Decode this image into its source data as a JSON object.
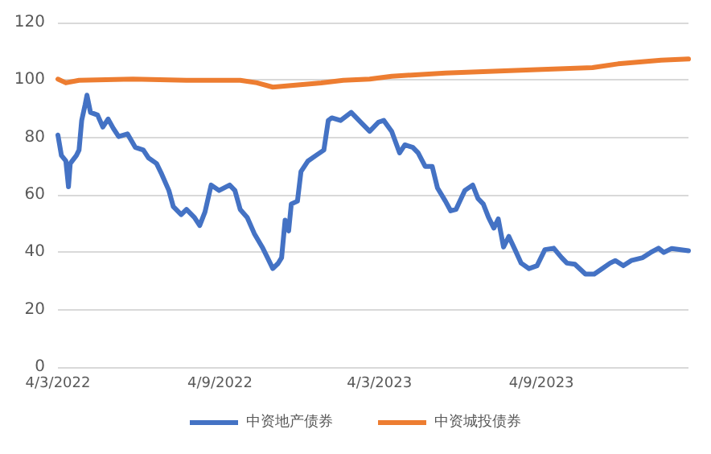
{
  "chart_data": {
    "type": "line",
    "xlim": [
      "2022-03-04",
      "2024-02-18"
    ],
    "xticks": [
      {
        "value": "2022-03-04",
        "label": "4/3/2022"
      },
      {
        "value": "2022-09-04",
        "label": "4/9/2022"
      },
      {
        "value": "2023-03-04",
        "label": "4/3/2023"
      },
      {
        "value": "2023-09-04",
        "label": "4/9/2023"
      }
    ],
    "ylim": [
      0,
      120
    ],
    "yticks": [
      0,
      20,
      40,
      60,
      80,
      100,
      120
    ],
    "grid": "y",
    "legend": "bottom",
    "marker": "none",
    "line_style": "solid",
    "series": [
      {
        "name": "中资地产债券",
        "color": "#4472c4",
        "x": [
          "2022-03-04",
          "2022-03-08",
          "2022-03-13",
          "2022-03-16",
          "2022-03-18",
          "2022-03-25",
          "2022-03-28",
          "2022-03-31",
          "2022-04-04",
          "2022-04-06",
          "2022-04-10",
          "2022-04-18",
          "2022-04-24",
          "2022-04-30",
          "2022-05-06",
          "2022-05-12",
          "2022-05-22",
          "2022-05-31",
          "2022-06-09",
          "2022-06-15",
          "2022-06-24",
          "2022-06-30",
          "2022-07-08",
          "2022-07-13",
          "2022-07-22",
          "2022-07-28",
          "2022-08-06",
          "2022-08-12",
          "2022-08-18",
          "2022-08-25",
          "2022-09-03",
          "2022-09-15",
          "2022-09-21",
          "2022-09-27",
          "2022-10-05",
          "2022-10-13",
          "2022-10-22",
          "2022-10-28",
          "2022-11-03",
          "2022-11-09",
          "2022-11-13",
          "2022-11-17",
          "2022-11-21",
          "2022-11-24",
          "2022-12-01",
          "2022-12-05",
          "2022-12-13",
          "2022-12-22",
          "2022-12-31",
          "2023-01-05",
          "2023-01-09",
          "2023-01-19",
          "2023-01-31",
          "2023-02-12",
          "2023-02-21",
          "2023-03-03",
          "2023-03-09",
          "2023-03-18",
          "2023-03-27",
          "2023-04-02",
          "2023-04-11",
          "2023-04-17",
          "2023-04-25",
          "2023-05-03",
          "2023-05-09",
          "2023-05-18",
          "2023-05-24",
          "2023-05-30",
          "2023-06-09",
          "2023-06-18",
          "2023-06-24",
          "2023-06-30",
          "2023-07-06",
          "2023-07-12",
          "2023-07-17",
          "2023-07-23",
          "2023-07-29",
          "2023-08-05",
          "2023-08-12",
          "2023-08-21",
          "2023-08-30",
          "2023-09-08",
          "2023-09-18",
          "2023-09-27",
          "2023-10-03",
          "2023-10-12",
          "2023-10-24",
          "2023-11-03",
          "2023-11-12",
          "2023-11-21",
          "2023-11-27",
          "2023-12-06",
          "2023-12-15",
          "2023-12-28",
          "2024-01-06",
          "2024-01-15",
          "2024-01-21",
          "2024-01-30",
          "2024-02-18"
        ],
        "values": [
          80.8,
          73.7,
          71.8,
          62.8,
          70.9,
          73.7,
          75.6,
          85.9,
          91.5,
          94.7,
          88.7,
          87.8,
          83.6,
          86.4,
          83.1,
          80.3,
          81.2,
          76.5,
          75.6,
          72.8,
          70.9,
          67.1,
          61.5,
          55.9,
          53.1,
          54.9,
          52.1,
          49.3,
          54.0,
          63.4,
          61.5,
          63.4,
          61.5,
          54.9,
          52.1,
          46.5,
          41.8,
          38.1,
          34.3,
          36.1,
          38.1,
          51.2,
          47.4,
          56.8,
          57.8,
          68.1,
          71.8,
          73.7,
          75.6,
          85.9,
          86.8,
          85.9,
          88.7,
          84.9,
          82.1,
          85.3,
          85.9,
          82.1,
          74.6,
          77.4,
          76.5,
          74.6,
          69.9,
          69.9,
          62.4,
          57.8,
          54.4,
          54.9,
          61.5,
          63.4,
          58.7,
          56.8,
          52.1,
          48.4,
          51.6,
          41.8,
          45.5,
          40.9,
          36.2,
          34.3,
          35.3,
          40.9,
          41.4,
          38.1,
          36.2,
          35.8,
          32.4,
          32.4,
          34.3,
          36.2,
          37.1,
          35.3,
          37.1,
          38.1,
          39.9,
          41.4,
          39.9,
          41.3,
          40.5
        ]
      },
      {
        "name": "中资城投债券",
        "color": "#ed7d31",
        "x": [
          "2022-03-04",
          "2022-03-13",
          "2022-03-28",
          "2022-05-28",
          "2022-07-28",
          "2022-09-27",
          "2022-10-16",
          "2022-11-03",
          "2022-11-21",
          "2022-12-28",
          "2023-01-22",
          "2023-02-21",
          "2023-03-18",
          "2023-05-18",
          "2023-07-18",
          "2023-09-05",
          "2023-11-01",
          "2023-11-30",
          "2024-01-18",
          "2024-02-18"
        ],
        "values": [
          100.3,
          99.0,
          99.9,
          100.3,
          99.9,
          99.9,
          99.0,
          97.5,
          98.0,
          99.0,
          99.9,
          100.3,
          101.3,
          102.4,
          103.1,
          103.7,
          104.3,
          105.6,
          106.9,
          107.3
        ]
      }
    ]
  }
}
